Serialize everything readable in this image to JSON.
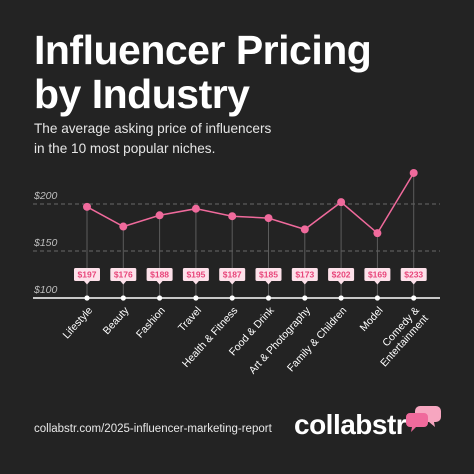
{
  "header": {
    "title_line1": "Influencer Pricing",
    "title_line2": "by Industry",
    "subtitle_line1": "The average asking price of influencers",
    "subtitle_line2": "in the 10 most popular niches."
  },
  "footer": {
    "url": "collabstr.com/2025-influencer-marketing-report",
    "brand": "collabstr"
  },
  "colors": {
    "background": "#232323",
    "accent": "#f06a9c",
    "label_bg": "#fde1ea",
    "label_text": "#e8457a",
    "text": "#ffffff"
  },
  "chart_data": {
    "type": "line",
    "categories": [
      "Lifestyle",
      "Beauty",
      "Fashion",
      "Travel",
      "Health & Fitness",
      "Food & Drink",
      "Art & Photography",
      "Family & Children",
      "Model",
      "Comedy & Entertainment"
    ],
    "values": [
      197,
      176,
      188,
      195,
      187,
      185,
      173,
      202,
      169,
      233
    ],
    "data_labels": [
      "$197",
      "$176",
      "$188",
      "$195",
      "$187",
      "$185",
      "$173",
      "$202",
      "$169",
      "$233"
    ],
    "y_ticks": [
      "$100",
      "$150",
      "$200"
    ],
    "ylim": [
      100,
      200
    ],
    "grid": "dashed",
    "title": "",
    "xlabel": "",
    "ylabel": ""
  }
}
